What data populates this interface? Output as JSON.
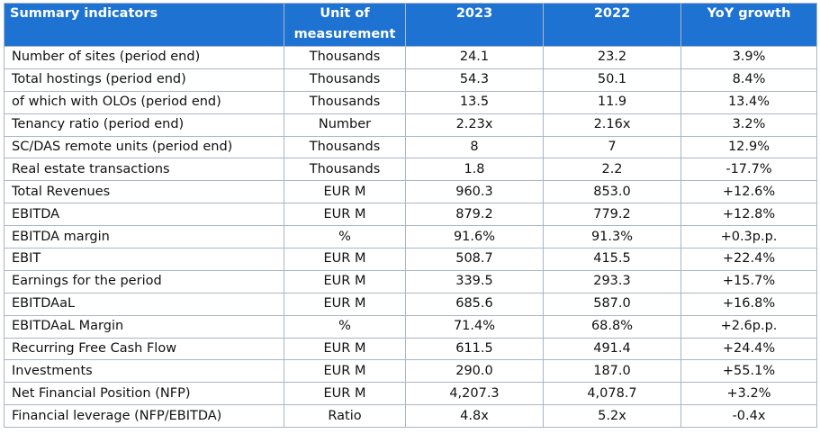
{
  "header": {
    "col_indicator": "Summary indicators",
    "col_unit_line1": "Unit of",
    "col_unit_line2": "measurement",
    "col_2023": "2023",
    "col_2022": "2022",
    "col_yoy": "YoY growth"
  },
  "rows": [
    {
      "label": "Number of sites (period end)",
      "unit": "Thousands",
      "y2023": "24.1",
      "y2022": "23.2",
      "yoy": "3.9%"
    },
    {
      "label": "Total hostings (period end)",
      "unit": "Thousands",
      "y2023": "54.3",
      "y2022": "50.1",
      "yoy": "8.4%"
    },
    {
      "label": "of which with OLOs (period end)",
      "unit": "Thousands",
      "y2023": "13.5",
      "y2022": "11.9",
      "yoy": "13.4%"
    },
    {
      "label": "Tenancy ratio (period end)",
      "unit": "Number",
      "y2023": "2.23x",
      "y2022": "2.16x",
      "yoy": "3.2%"
    },
    {
      "label": "SC/DAS remote units (period end)",
      "unit": "Thousands",
      "y2023": "8",
      "y2022": "7",
      "yoy": "12.9%"
    },
    {
      "label": "Real estate transactions",
      "unit": "Thousands",
      "y2023": "1.8",
      "y2022": "2.2",
      "yoy": "-17.7%"
    },
    {
      "label": "Total Revenues",
      "unit": "EUR M",
      "y2023": "960.3",
      "y2022": "853.0",
      "yoy": "+12.6%"
    },
    {
      "label": "EBITDA",
      "unit": "EUR M",
      "y2023": "879.2",
      "y2022": "779.2",
      "yoy": "+12.8%"
    },
    {
      "label": "EBITDA margin",
      "unit": "%",
      "y2023": "91.6%",
      "y2022": "91.3%",
      "yoy": "+0.3p.p."
    },
    {
      "label": "EBIT",
      "unit": "EUR M",
      "y2023": "508.7",
      "y2022": "415.5",
      "yoy": "+22.4%"
    },
    {
      "label": "Earnings for the period",
      "unit": "EUR M",
      "y2023": "339.5",
      "y2022": "293.3",
      "yoy": "+15.7%"
    },
    {
      "label": "EBITDAaL",
      "unit": "EUR M",
      "y2023": "685.6",
      "y2022": "587.0",
      "yoy": "+16.8%"
    },
    {
      "label": "EBITDAaL Margin",
      "unit": "%",
      "y2023": "71.4%",
      "y2022": "68.8%",
      "yoy": "+2.6p.p."
    },
    {
      "label": "Recurring Free Cash Flow",
      "unit": "EUR M",
      "y2023": "611.5",
      "y2022": "491.4",
      "yoy": "+24.4%"
    },
    {
      "label": "Investments",
      "unit": "EUR M",
      "y2023": "290.0",
      "y2022": "187.0",
      "yoy": "+55.1%"
    },
    {
      "label": "Net Financial Position (NFP)",
      "unit": "EUR M",
      "y2023": "4,207.3",
      "y2022": "4,078.7",
      "yoy": "+3.2%"
    },
    {
      "label": "Financial leverage (NFP/EBITDA)",
      "unit": "Ratio",
      "y2023": "4.8x",
      "y2022": "5.2x",
      "yoy": "-0.4x"
    }
  ],
  "colors": {
    "header_bg": "#1e73d2",
    "header_text": "#ffffff",
    "border": "#a9b6c6"
  }
}
